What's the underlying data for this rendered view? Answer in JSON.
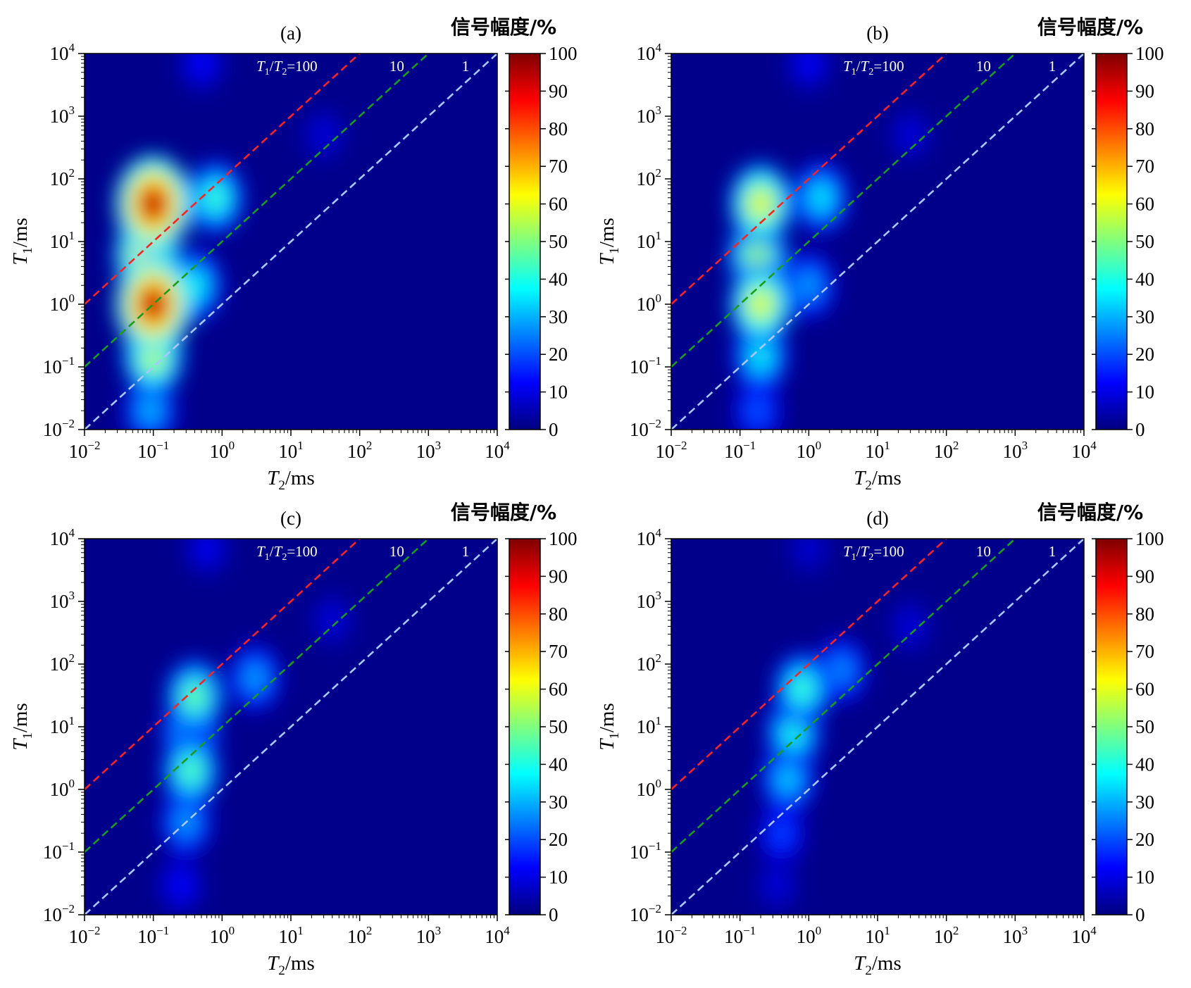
{
  "figure": {
    "colorbar_title": "信号幅度/%",
    "colorbar_ticks": [
      "0",
      "10",
      "20",
      "30",
      "40",
      "50",
      "60",
      "70",
      "80",
      "90",
      "100"
    ],
    "colormap": "jet",
    "colormap_stops": [
      "#00007f",
      "#0000ff",
      "#007fff",
      "#00ffff",
      "#7fff7f",
      "#ffff00",
      "#ff7f00",
      "#ff0000",
      "#7f0000"
    ],
    "background_color": "#00008b"
  },
  "chart_data": [
    {
      "type": "heatmap",
      "title": "(a)",
      "xlabel": {
        "symbol": "T",
        "sub": "2",
        "unit": "/ms"
      },
      "ylabel": {
        "symbol": "T",
        "sub": "1",
        "unit": "/ms"
      },
      "x_scale": "log",
      "y_scale": "log",
      "xlim": [
        0.01,
        10000
      ],
      "ylim": [
        0.01,
        10000
      ],
      "x_ticks": [
        {
          "base": "10",
          "exp": "−2"
        },
        {
          "base": "10",
          "exp": "−1"
        },
        {
          "base": "10",
          "exp": "0"
        },
        {
          "base": "10",
          "exp": "1"
        },
        {
          "base": "10",
          "exp": "2"
        },
        {
          "base": "10",
          "exp": "3"
        },
        {
          "base": "10",
          "exp": "4"
        }
      ],
      "y_ticks": [
        {
          "base": "10",
          "exp": "−2"
        },
        {
          "base": "10",
          "exp": "−1"
        },
        {
          "base": "10",
          "exp": "0"
        },
        {
          "base": "10",
          "exp": "1"
        },
        {
          "base": "10",
          "exp": "2"
        },
        {
          "base": "10",
          "exp": "3"
        },
        {
          "base": "10",
          "exp": "4"
        }
      ],
      "colorbar_range": [
        0,
        100
      ],
      "reference_lines": [
        {
          "ratio": 100,
          "label": "=100",
          "label_prefix": "T1/T2",
          "color": "#ff2020"
        },
        {
          "ratio": 10,
          "label": "10",
          "color": "#1a9e1a"
        },
        {
          "ratio": 1,
          "label": "1",
          "color": "#a8c8ff"
        }
      ],
      "peaks": [
        {
          "t2": 0.1,
          "t1": 40,
          "amplitude": 100
        },
        {
          "t2": 0.1,
          "t1": 1.0,
          "amplitude": 100
        },
        {
          "t2": 0.08,
          "t1": 6,
          "amplitude": 72
        },
        {
          "t2": 0.1,
          "t1": 0.15,
          "amplitude": 60
        },
        {
          "t2": 0.09,
          "t1": 0.02,
          "amplitude": 32
        },
        {
          "t2": 0.8,
          "t1": 50,
          "amplitude": 45
        },
        {
          "t2": 0.4,
          "t1": 2,
          "amplitude": 40
        },
        {
          "t2": 30,
          "t1": 500,
          "amplitude": 10
        },
        {
          "t2": 0.5,
          "t1": 7000,
          "amplitude": 14
        }
      ]
    },
    {
      "type": "heatmap",
      "title": "(b)",
      "xlabel": {
        "symbol": "T",
        "sub": "2",
        "unit": "/ms"
      },
      "ylabel": {
        "symbol": "T",
        "sub": "1",
        "unit": "/ms"
      },
      "x_scale": "log",
      "y_scale": "log",
      "xlim": [
        0.01,
        10000
      ],
      "ylim": [
        0.01,
        10000
      ],
      "x_ticks": [
        {
          "base": "10",
          "exp": "−2"
        },
        {
          "base": "10",
          "exp": "−1"
        },
        {
          "base": "10",
          "exp": "0"
        },
        {
          "base": "10",
          "exp": "1"
        },
        {
          "base": "10",
          "exp": "2"
        },
        {
          "base": "10",
          "exp": "3"
        },
        {
          "base": "10",
          "exp": "4"
        }
      ],
      "y_ticks": [
        {
          "base": "10",
          "exp": "−2"
        },
        {
          "base": "10",
          "exp": "−1"
        },
        {
          "base": "10",
          "exp": "0"
        },
        {
          "base": "10",
          "exp": "1"
        },
        {
          "base": "10",
          "exp": "2"
        },
        {
          "base": "10",
          "exp": "3"
        },
        {
          "base": "10",
          "exp": "4"
        }
      ],
      "colorbar_range": [
        0,
        100
      ],
      "reference_lines": [
        {
          "ratio": 100,
          "label": "=100",
          "label_prefix": "T1/T2",
          "color": "#ff2020"
        },
        {
          "ratio": 10,
          "label": "10",
          "color": "#1a9e1a"
        },
        {
          "ratio": 1,
          "label": "1",
          "color": "#a8c8ff"
        }
      ],
      "peaks": [
        {
          "t2": 0.2,
          "t1": 40,
          "amplitude": 65
        },
        {
          "t2": 0.2,
          "t1": 1.0,
          "amplitude": 64
        },
        {
          "t2": 0.18,
          "t1": 6,
          "amplitude": 55
        },
        {
          "t2": 0.2,
          "t1": 0.15,
          "amplitude": 40
        },
        {
          "t2": 0.18,
          "t1": 0.02,
          "amplitude": 22
        },
        {
          "t2": 1.5,
          "t1": 50,
          "amplitude": 38
        },
        {
          "t2": 1.0,
          "t1": 2,
          "amplitude": 30
        },
        {
          "t2": 30,
          "t1": 500,
          "amplitude": 10
        },
        {
          "t2": 1.0,
          "t1": 7000,
          "amplitude": 13
        }
      ]
    },
    {
      "type": "heatmap",
      "title": "(c)",
      "xlabel": {
        "symbol": "T",
        "sub": "2",
        "unit": "/ms"
      },
      "ylabel": {
        "symbol": "T",
        "sub": "1",
        "unit": "/ms"
      },
      "x_scale": "log",
      "y_scale": "log",
      "xlim": [
        0.01,
        10000
      ],
      "ylim": [
        0.01,
        10000
      ],
      "x_ticks": [
        {
          "base": "10",
          "exp": "−2"
        },
        {
          "base": "10",
          "exp": "−1"
        },
        {
          "base": "10",
          "exp": "0"
        },
        {
          "base": "10",
          "exp": "1"
        },
        {
          "base": "10",
          "exp": "2"
        },
        {
          "base": "10",
          "exp": "3"
        },
        {
          "base": "10",
          "exp": "4"
        }
      ],
      "y_ticks": [
        {
          "base": "10",
          "exp": "−2"
        },
        {
          "base": "10",
          "exp": "−1"
        },
        {
          "base": "10",
          "exp": "0"
        },
        {
          "base": "10",
          "exp": "1"
        },
        {
          "base": "10",
          "exp": "2"
        },
        {
          "base": "10",
          "exp": "3"
        },
        {
          "base": "10",
          "exp": "4"
        }
      ],
      "colorbar_range": [
        0,
        100
      ],
      "reference_lines": [
        {
          "ratio": 100,
          "label": "=100",
          "label_prefix": "T1/T2",
          "color": "#ff2020"
        },
        {
          "ratio": 10,
          "label": "10",
          "color": "#1a9e1a"
        },
        {
          "ratio": 1,
          "label": "1",
          "color": "#a8c8ff"
        }
      ],
      "peaks": [
        {
          "t2": 0.4,
          "t1": 30,
          "amplitude": 50
        },
        {
          "t2": 0.35,
          "t1": 2,
          "amplitude": 48
        },
        {
          "t2": 0.35,
          "t1": 8,
          "amplitude": 44
        },
        {
          "t2": 0.3,
          "t1": 0.3,
          "amplitude": 30
        },
        {
          "t2": 0.25,
          "t1": 0.03,
          "amplitude": 14
        },
        {
          "t2": 3,
          "t1": 60,
          "amplitude": 30
        },
        {
          "t2": 40,
          "t1": 500,
          "amplitude": 10
        },
        {
          "t2": 0.6,
          "t1": 7000,
          "amplitude": 12
        }
      ]
    },
    {
      "type": "heatmap",
      "title": "(d)",
      "xlabel": {
        "symbol": "T",
        "sub": "2",
        "unit": "/ms"
      },
      "ylabel": {
        "symbol": "T",
        "sub": "1",
        "unit": "/ms"
      },
      "x_scale": "log",
      "y_scale": "log",
      "xlim": [
        0.01,
        10000
      ],
      "ylim": [
        0.01,
        10000
      ],
      "x_ticks": [
        {
          "base": "10",
          "exp": "−2"
        },
        {
          "base": "10",
          "exp": "−1"
        },
        {
          "base": "10",
          "exp": "0"
        },
        {
          "base": "10",
          "exp": "1"
        },
        {
          "base": "10",
          "exp": "2"
        },
        {
          "base": "10",
          "exp": "3"
        },
        {
          "base": "10",
          "exp": "4"
        }
      ],
      "y_ticks": [
        {
          "base": "10",
          "exp": "−2"
        },
        {
          "base": "10",
          "exp": "−1"
        },
        {
          "base": "10",
          "exp": "0"
        },
        {
          "base": "10",
          "exp": "1"
        },
        {
          "base": "10",
          "exp": "2"
        },
        {
          "base": "10",
          "exp": "3"
        },
        {
          "base": "10",
          "exp": "4"
        }
      ],
      "colorbar_range": [
        0,
        100
      ],
      "reference_lines": [
        {
          "ratio": 100,
          "label": "=100",
          "label_prefix": "T1/T2",
          "color": "#ff2020"
        },
        {
          "ratio": 10,
          "label": "10",
          "color": "#1a9e1a"
        },
        {
          "ratio": 1,
          "label": "1",
          "color": "#a8c8ff"
        }
      ],
      "peaks": [
        {
          "t2": 0.8,
          "t1": 40,
          "amplitude": 45
        },
        {
          "t2": 0.6,
          "t1": 8,
          "amplitude": 42
        },
        {
          "t2": 0.5,
          "t1": 1.5,
          "amplitude": 35
        },
        {
          "t2": 0.4,
          "t1": 0.2,
          "amplitude": 20
        },
        {
          "t2": 0.35,
          "t1": 0.03,
          "amplitude": 10
        },
        {
          "t2": 3,
          "t1": 80,
          "amplitude": 28
        },
        {
          "t2": 30,
          "t1": 400,
          "amplitude": 10
        },
        {
          "t2": 1.0,
          "t1": 7000,
          "amplitude": 9
        }
      ]
    }
  ]
}
